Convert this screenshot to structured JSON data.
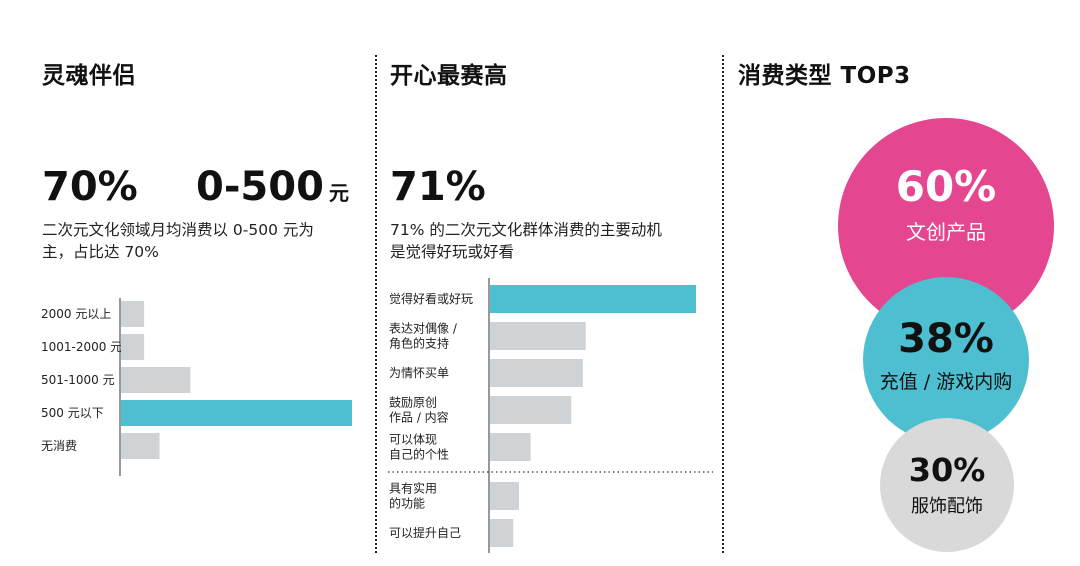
{
  "colors": {
    "accent": "#4dbfd0",
    "gray": "#d0d3d6",
    "pink": "#e4468f",
    "teal": "#4dbfd0",
    "lightgray": "#d9d9d9",
    "text": "#111111"
  },
  "panel1": {
    "heading": "灵魂伴侣",
    "stat1": "70%",
    "stat2": "0-500",
    "stat2_unit": "元",
    "desc_line1": "二次元文化领域月均消费以 0-500 元为",
    "desc_line2": "主，占比达 70%"
  },
  "panel2": {
    "heading": "开心最赛高",
    "stat": "71%",
    "desc_line1": "71% 的二次元文化群体消费的主要动机",
    "desc_line2": "是觉得好玩或好看"
  },
  "panel3": {
    "heading": "消费类型 TOP3",
    "items": [
      {
        "pct": "60%",
        "label": "文创产品",
        "color": "#e4468f"
      },
      {
        "pct": "38%",
        "label": "充值 / 游戏内购",
        "color": "#4dbfd0"
      },
      {
        "pct": "30%",
        "label": "服饰配饰",
        "color": "#d9d9d9"
      }
    ]
  },
  "chart_data": [
    {
      "type": "bar",
      "orientation": "horizontal",
      "categories": [
        "2000 元以上",
        "1001-2000 元",
        "501-1000 元",
        "500 元以下",
        "无消费"
      ],
      "values": [
        3,
        3,
        9,
        30,
        5
      ],
      "xlim": [
        0,
        30
      ],
      "highlight_index": 3
    },
    {
      "type": "bar",
      "orientation": "horizontal",
      "categories": [
        [
          "觉得好看或好玩"
        ],
        [
          "表达对偶像 /",
          "角色的支持"
        ],
        [
          "为情怀买单"
        ],
        [
          "鼓励原创",
          "作品 / 内容"
        ],
        [
          "可以体现",
          "自己的个性"
        ],
        [
          "具有实用",
          "的功能"
        ],
        [
          "可以提升自己"
        ]
      ],
      "values": [
        71,
        33,
        32,
        28,
        14,
        10,
        8
      ],
      "xlim": [
        0,
        71
      ],
      "highlight_index": 0
    }
  ]
}
